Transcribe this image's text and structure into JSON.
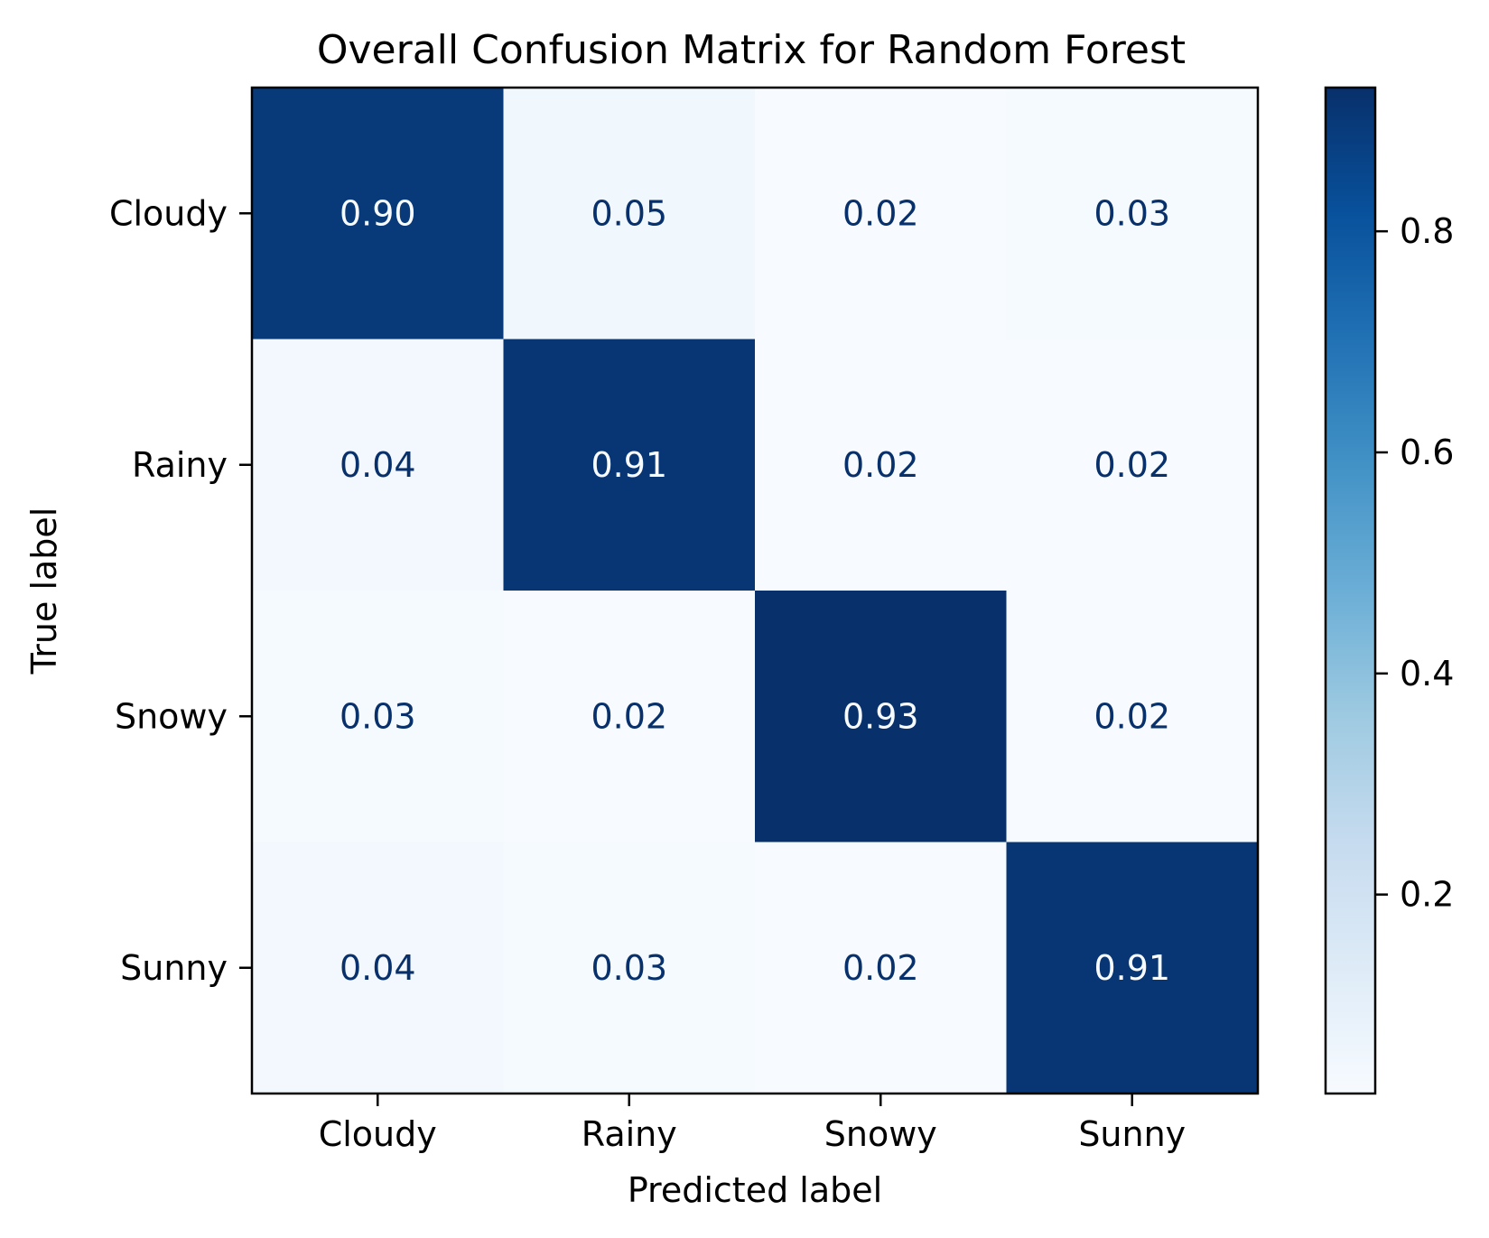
{
  "chart_data": {
    "type": "heatmap",
    "title": "Overall Confusion Matrix for Random Forest",
    "xlabel": "Predicted label",
    "ylabel": "True label",
    "x_categories": [
      "Cloudy",
      "Rainy",
      "Snowy",
      "Sunny"
    ],
    "y_categories": [
      "Cloudy",
      "Rainy",
      "Snowy",
      "Sunny"
    ],
    "values": [
      [
        0.9,
        0.05,
        0.02,
        0.03
      ],
      [
        0.04,
        0.91,
        0.02,
        0.02
      ],
      [
        0.03,
        0.02,
        0.93,
        0.02
      ],
      [
        0.04,
        0.03,
        0.02,
        0.91
      ]
    ],
    "value_labels": [
      [
        "0.90",
        "0.05",
        "0.02",
        "0.03"
      ],
      [
        "0.04",
        "0.91",
        "0.02",
        "0.02"
      ],
      [
        "0.03",
        "0.02",
        "0.93",
        "0.02"
      ],
      [
        "0.04",
        "0.03",
        "0.02",
        "0.91"
      ]
    ],
    "colormap": "Blues",
    "color_range": [
      0.02,
      0.93
    ],
    "colorbar": {
      "ticks": [
        0.2,
        0.4,
        0.6,
        0.8
      ],
      "tick_labels": [
        "0.2",
        "0.4",
        "0.6",
        "0.8"
      ]
    },
    "grid": false
  }
}
